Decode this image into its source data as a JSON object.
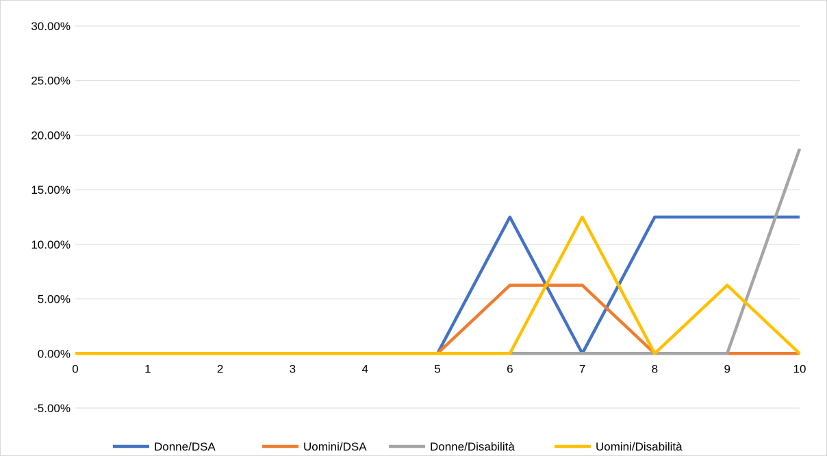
{
  "chart_data": {
    "type": "line",
    "title": "",
    "xlabel": "",
    "ylabel": "",
    "x": [
      0,
      1,
      2,
      3,
      4,
      5,
      6,
      7,
      8,
      9,
      10
    ],
    "x_tick_labels": [
      "0",
      "1",
      "2",
      "3",
      "4",
      "5",
      "6",
      "7",
      "8",
      "9",
      "10"
    ],
    "ylim": [
      -0.05,
      0.3
    ],
    "y_ticks": [
      -0.05,
      0.0,
      0.05,
      0.1,
      0.15,
      0.2,
      0.25,
      0.3
    ],
    "y_tick_labels": [
      "-5.00%",
      "0.00%",
      "5.00%",
      "10.00%",
      "15.00%",
      "20.00%",
      "25.00%",
      "30.00%"
    ],
    "grid": true,
    "legend_position": "bottom",
    "series": [
      {
        "name": "Donne/DSA",
        "color": "#4472C4",
        "values": [
          0,
          0,
          0,
          0,
          0,
          0,
          0.125,
          0,
          0.125,
          0.125,
          0.125
        ]
      },
      {
        "name": "Uomini/DSA",
        "color": "#ED7D31",
        "values": [
          0,
          0,
          0,
          0,
          0,
          0,
          0.0625,
          0.0625,
          0,
          0,
          0
        ]
      },
      {
        "name": "Donne/Disabilità",
        "color": "#A5A5A5",
        "values": [
          0,
          0,
          0,
          0,
          0,
          0,
          0,
          0,
          0,
          0,
          0.1875
        ]
      },
      {
        "name": "Uomini/Disabilità",
        "color": "#FFC000",
        "values": [
          0,
          0,
          0,
          0,
          0,
          0,
          0,
          0.125,
          0,
          0.0625,
          0
        ]
      }
    ]
  }
}
